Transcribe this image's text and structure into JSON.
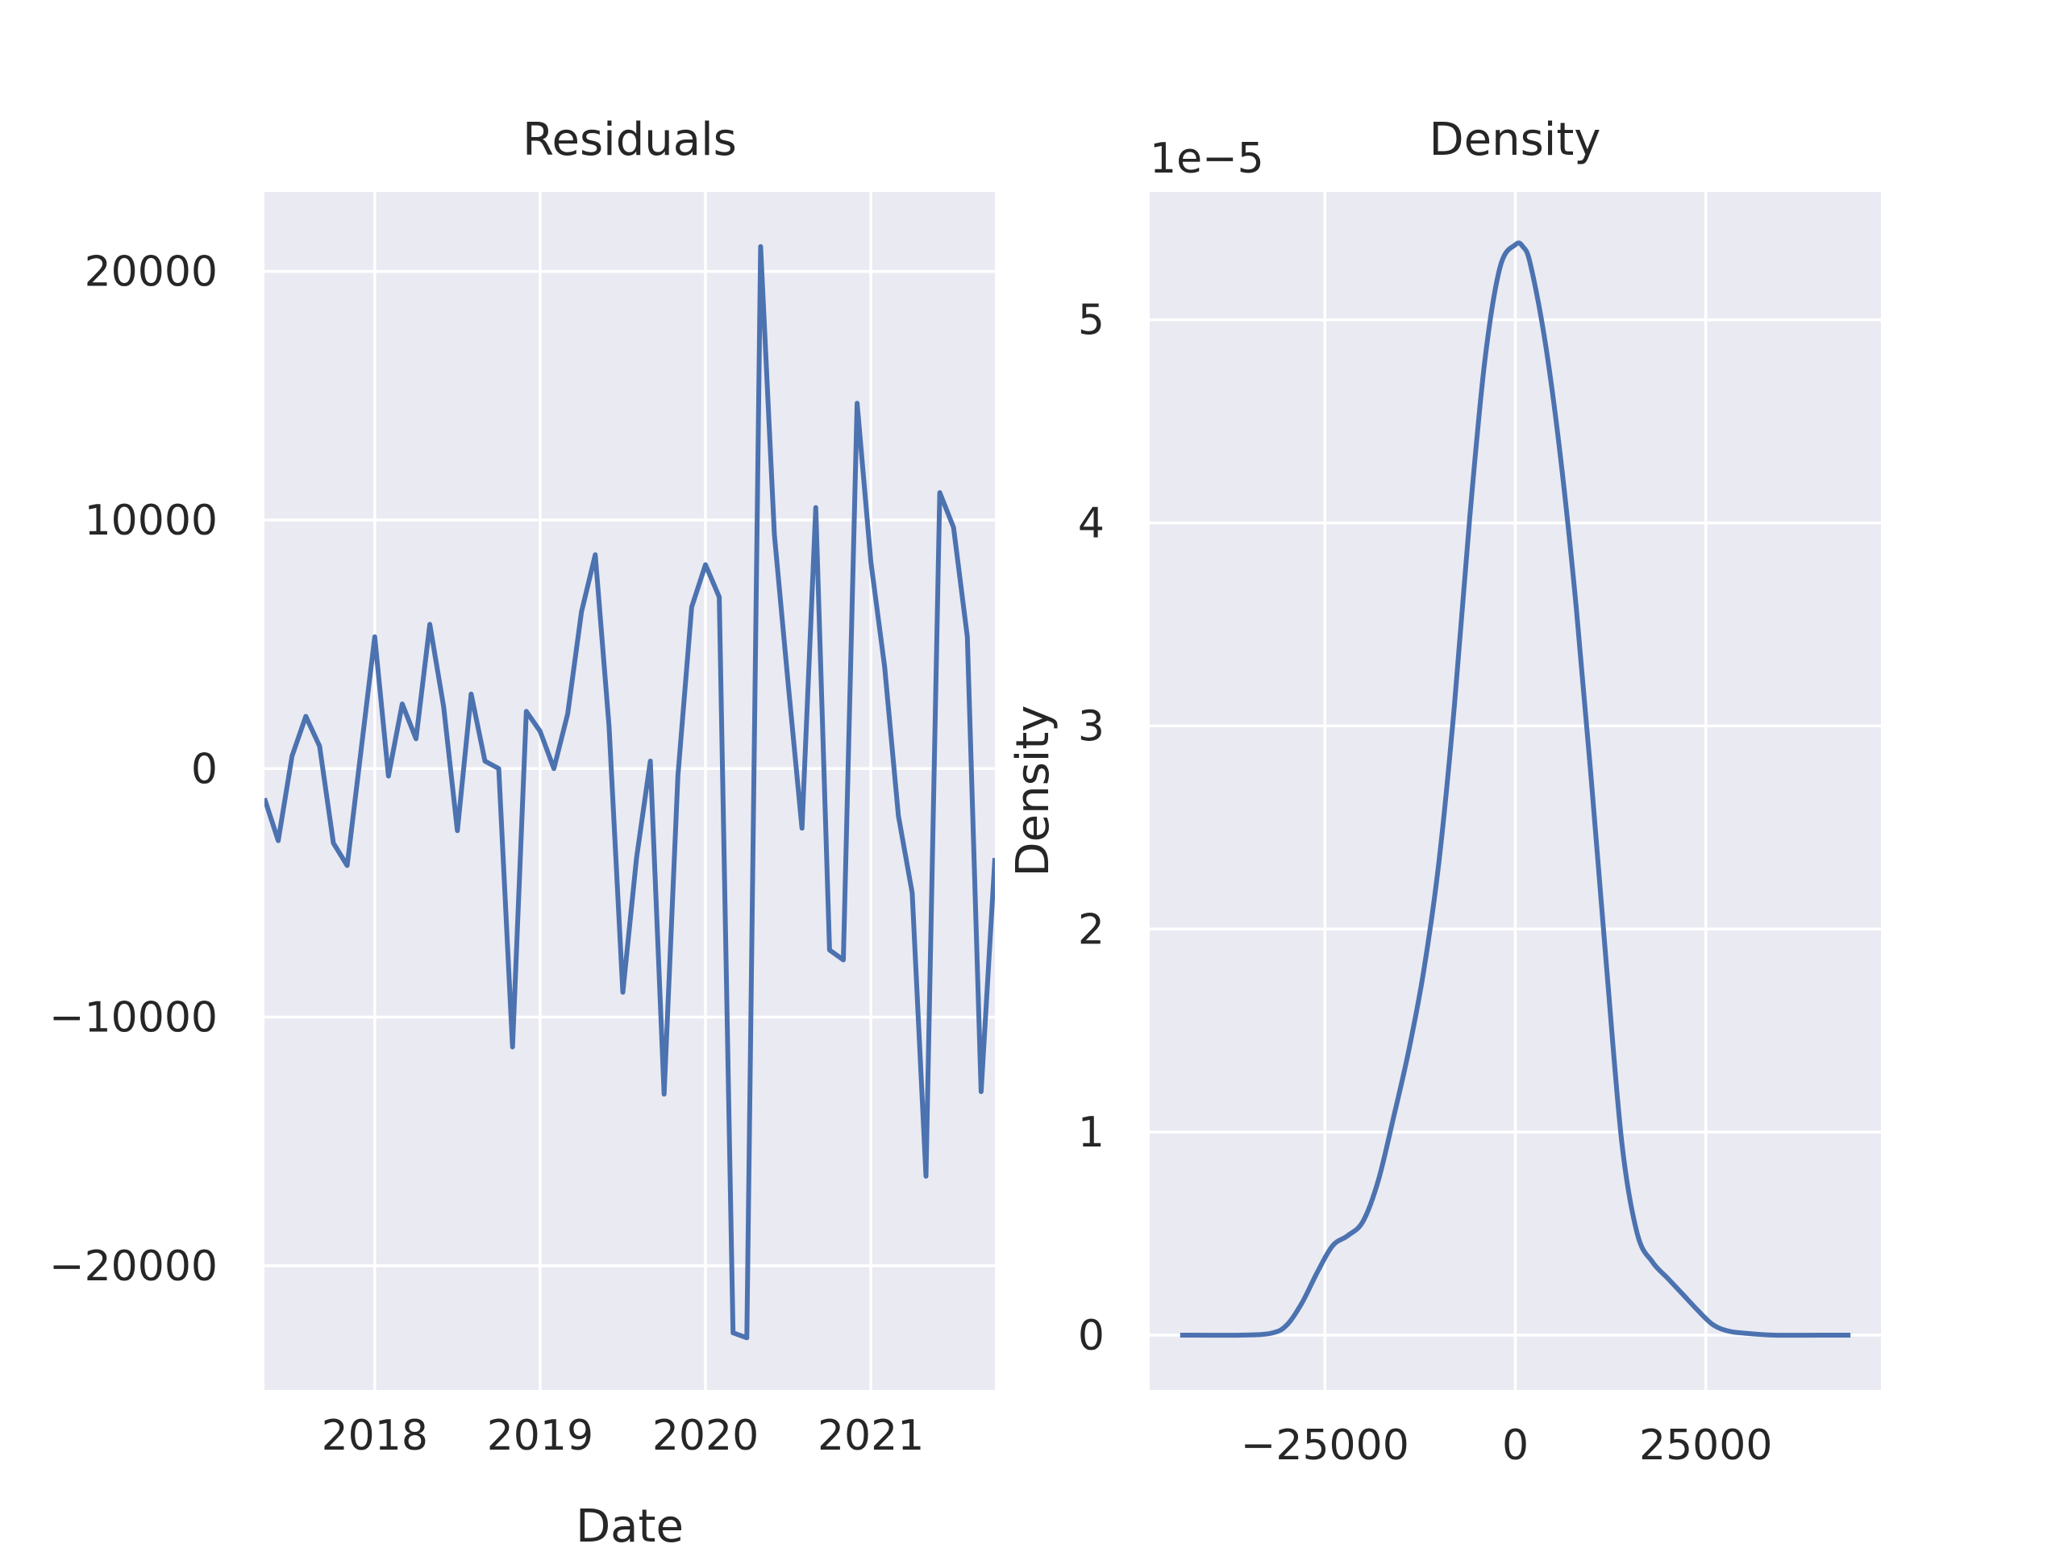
{
  "chart_data": [
    {
      "type": "line",
      "title": "Residuals",
      "xlabel": "Date",
      "ylabel": "",
      "x_tick_labels": [
        "2018",
        "2019",
        "2020",
        "2021"
      ],
      "y_tick_labels": [
        "−20000",
        "−10000",
        "0",
        "10000",
        "20000"
      ],
      "y_ticks": [
        -20000,
        -10000,
        0,
        10000,
        20000
      ],
      "xlim": [
        "2017-05",
        "2021-10"
      ],
      "ylim": [
        -25000,
        23200
      ],
      "grid": true,
      "legend": "none",
      "line_color": "#4c72b0",
      "x": [
        "2017-05",
        "2017-06",
        "2017-07",
        "2017-08",
        "2017-09",
        "2017-10",
        "2017-11",
        "2017-12",
        "2018-01",
        "2018-02",
        "2018-03",
        "2018-04",
        "2018-05",
        "2018-06",
        "2018-07",
        "2018-08",
        "2018-09",
        "2018-10",
        "2018-11",
        "2018-12",
        "2019-01",
        "2019-02",
        "2019-03",
        "2019-04",
        "2019-05",
        "2019-06",
        "2019-07",
        "2019-08",
        "2019-09",
        "2019-10",
        "2019-11",
        "2019-12",
        "2020-01",
        "2020-02",
        "2020-03",
        "2020-04",
        "2020-05",
        "2020-06",
        "2020-07",
        "2020-08",
        "2020-09",
        "2020-10",
        "2020-11",
        "2020-12",
        "2021-01",
        "2021-02",
        "2021-03",
        "2021-04",
        "2021-05",
        "2021-06",
        "2021-07",
        "2021-08",
        "2021-09",
        "2021-10"
      ],
      "values": [
        -1200,
        -2900,
        500,
        2100,
        900,
        -3000,
        -3900,
        700,
        5300,
        -300,
        2600,
        1200,
        5800,
        2500,
        -2500,
        3000,
        300,
        0,
        -11200,
        2300,
        1500,
        0,
        2200,
        6300,
        8600,
        1700,
        -9000,
        -3600,
        300,
        -13100,
        -300,
        6500,
        8200,
        6900,
        -22700,
        -22900,
        21000,
        9400,
        3400,
        -2400,
        10500,
        -7300,
        -7700,
        14700,
        8300,
        4100,
        -1900,
        -5000,
        -16400,
        11100,
        9700,
        5300,
        -13000,
        -3600
      ]
    },
    {
      "type": "line",
      "title": "Density",
      "xlabel": "",
      "ylabel": "Density",
      "offset_text": "1e−5",
      "x_tick_labels": [
        "−25000",
        "0",
        "25000"
      ],
      "x_ticks": [
        -25000,
        0,
        25000
      ],
      "y_tick_labels": [
        "0",
        "1",
        "2",
        "3",
        "4",
        "5"
      ],
      "y_ticks": [
        0,
        1,
        2,
        3,
        4,
        5
      ],
      "xlim": [
        -48000,
        48000
      ],
      "ylim": [
        -0.27,
        5.63
      ],
      "grid": true,
      "legend": "none",
      "line_color": "#4c72b0",
      "x": [
        -44000,
        -36000,
        -32000,
        -30000,
        -28000,
        -26000,
        -24000,
        -22000,
        -20000,
        -18000,
        -16000,
        -14000,
        -12000,
        -10000,
        -8000,
        -6000,
        -4000,
        -2000,
        0,
        1000,
        2000,
        4000,
        6000,
        8000,
        10000,
        12000,
        14000,
        16000,
        18000,
        20000,
        22000,
        24000,
        26000,
        28000,
        30000,
        34000,
        40000,
        44000
      ],
      "values": [
        0,
        0,
        0.01,
        0.05,
        0.16,
        0.31,
        0.44,
        0.49,
        0.56,
        0.76,
        1.07,
        1.4,
        1.8,
        2.34,
        3.1,
        4.02,
        4.8,
        5.26,
        5.37,
        5.36,
        5.27,
        4.87,
        4.3,
        3.58,
        2.72,
        1.8,
        0.94,
        0.5,
        0.36,
        0.28,
        0.2,
        0.12,
        0.05,
        0.02,
        0.01,
        0,
        0,
        0
      ]
    }
  ]
}
